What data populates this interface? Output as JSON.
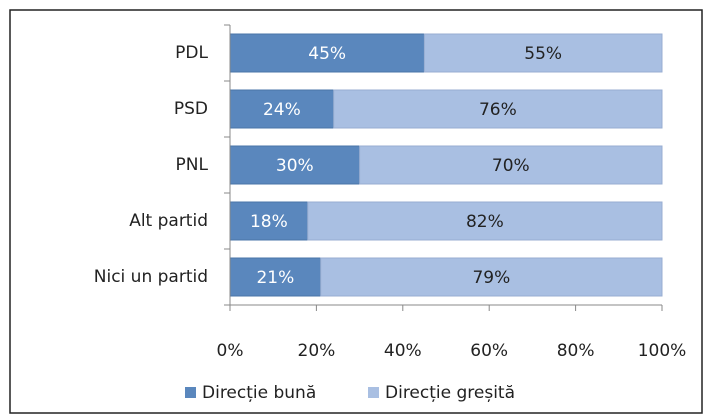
{
  "chart_data": {
    "type": "stacked-bar-horizontal",
    "categories": [
      "PDL",
      "PSD",
      "PNL",
      "Alt partid",
      "Nici un partid"
    ],
    "series": [
      {
        "name": "Direcție bună",
        "color": "#5a87bd",
        "values": [
          45,
          24,
          30,
          18,
          21
        ],
        "value_labels": [
          "45%",
          "24%",
          "30%",
          "18%",
          "21%"
        ]
      },
      {
        "name": "Direcție greșită",
        "color": "#a9bfe2",
        "values": [
          55,
          76,
          70,
          82,
          79
        ],
        "value_labels": [
          "55%",
          "76%",
          "70%",
          "82%",
          "79%"
        ]
      }
    ],
    "xlim": [
      0,
      100
    ],
    "xticks": [
      {
        "value": 0,
        "label": "0%"
      },
      {
        "value": 20,
        "label": "20%"
      },
      {
        "value": 40,
        "label": "40%"
      },
      {
        "value": 60,
        "label": "60%"
      },
      {
        "value": 80,
        "label": "80%"
      },
      {
        "value": 100,
        "label": "100%"
      }
    ],
    "legend": "bottom"
  }
}
